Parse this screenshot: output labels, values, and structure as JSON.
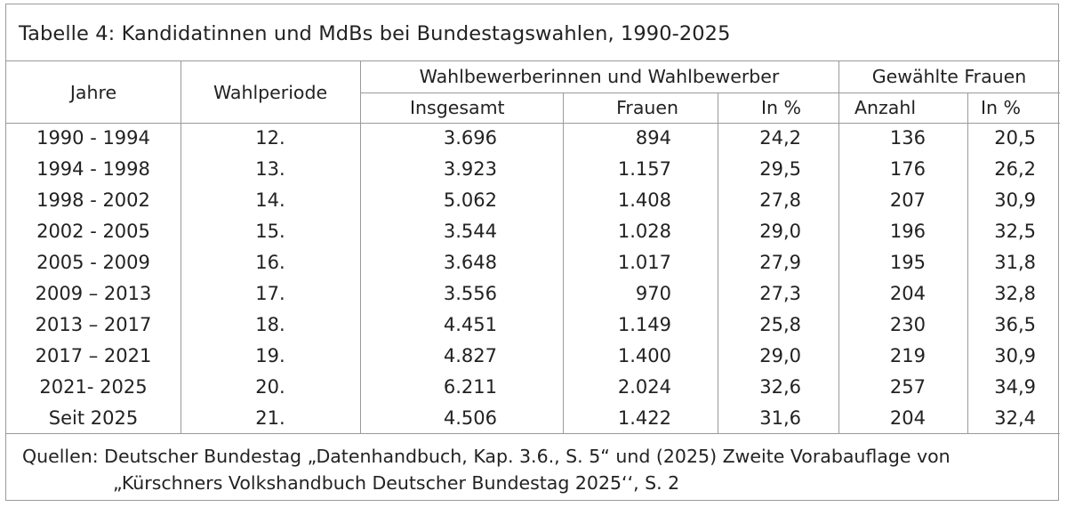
{
  "table": {
    "title": "Tabelle 4: Kandidatinnen und MdBs bei Bundestagswahlen, 1990-2025",
    "headers": {
      "jahre": "Jahre",
      "wahlperiode": "Wahlperiode",
      "group_bewerber": "Wahlbewerberinnen und Wahlbewerber",
      "insgesamt": "Insgesamt",
      "frauen": "Frauen",
      "in_pct_1": "In %",
      "group_gewaehlt": "Gewählte Frauen",
      "anzahl": "Anzahl",
      "in_pct_2": "In %"
    },
    "rows": [
      [
        "1990 - 1994",
        "12.",
        "3.696",
        "894",
        "24,2",
        "136",
        "20,5"
      ],
      [
        "1994 - 1998",
        "13.",
        "3.923",
        "1.157",
        "29,5",
        "176",
        "26,2"
      ],
      [
        "1998 - 2002",
        "14.",
        "5.062",
        "1.408",
        "27,8",
        "207",
        "30,9"
      ],
      [
        "2002 - 2005",
        "15.",
        "3.544",
        "1.028",
        "29,0",
        "196",
        "32,5"
      ],
      [
        "2005 - 2009",
        "16.",
        "3.648",
        "1.017",
        "27,9",
        "195",
        "31,8"
      ],
      [
        "2009 – 2013",
        "17.",
        "3.556",
        "970",
        "27,3",
        "204",
        "32,8"
      ],
      [
        "2013 – 2017",
        "18.",
        "4.451",
        "1.149",
        "25,8",
        "230",
        "36,5"
      ],
      [
        "2017 – 2021",
        "19.",
        "4.827",
        "1.400",
        "29,0",
        "219",
        "30,9"
      ],
      [
        "2021- 2025",
        "20.",
        "6.211",
        "2.024",
        "32,6",
        "257",
        "34,9"
      ],
      [
        "Seit 2025",
        "21.",
        "4.506",
        "1.422",
        "31,6",
        "204",
        "32,4"
      ]
    ],
    "source_line1": "Quellen: Deutscher Bundestag „Datenhandbuch, Kap. 3.6., S. 5“ und (2025) Zweite Vorabauflage von",
    "source_line2": "„Kürschners Volkshandbuch Deutscher Bundestag 2025‘‘, S. 2"
  }
}
